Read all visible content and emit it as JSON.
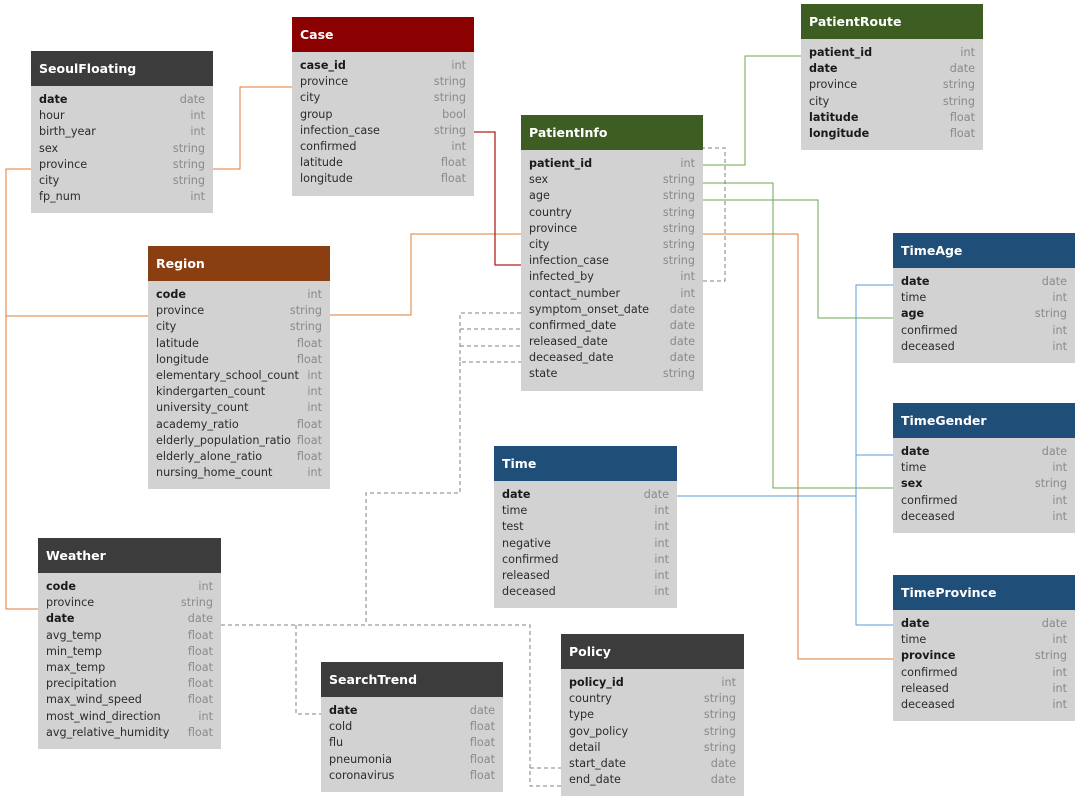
{
  "colors": {
    "gray_header": "#3c3c3c",
    "red_header": "#8b0000",
    "green_header": "#3e5d22",
    "brown_header": "#8a3f12",
    "blue_header": "#1f4e79",
    "body": "#d2d2d2",
    "orange_link": "#e07b39",
    "red_link": "#b22222",
    "green_link": "#6aa84f",
    "blue_link": "#5b9bd5",
    "dashed_link": "#808080"
  },
  "tables": [
    {
      "id": "seoulfloating",
      "title": "SeoulFloating",
      "color": "gray_header",
      "columns": [
        {
          "name": "date",
          "type": "date",
          "key": true
        },
        {
          "name": "hour",
          "type": "int",
          "key": false
        },
        {
          "name": "birth_year",
          "type": "int",
          "key": false
        },
        {
          "name": "sex",
          "type": "string",
          "key": false
        },
        {
          "name": "province",
          "type": "string",
          "key": false
        },
        {
          "name": "city",
          "type": "string",
          "key": false
        },
        {
          "name": "fp_num",
          "type": "int",
          "key": false
        }
      ]
    },
    {
      "id": "case",
      "title": "Case",
      "color": "red_header",
      "columns": [
        {
          "name": "case_id",
          "type": "int",
          "key": true
        },
        {
          "name": "province",
          "type": "string",
          "key": false
        },
        {
          "name": "city",
          "type": "string",
          "key": false
        },
        {
          "name": "group",
          "type": "bool",
          "key": false
        },
        {
          "name": "infection_case",
          "type": "string",
          "key": false
        },
        {
          "name": "confirmed",
          "type": "int",
          "key": false
        },
        {
          "name": "latitude",
          "type": "float",
          "key": false
        },
        {
          "name": "longitude",
          "type": "float",
          "key": false
        }
      ]
    },
    {
      "id": "patientroute",
      "title": "PatientRoute",
      "color": "green_header",
      "columns": [
        {
          "name": "patient_id",
          "type": "int",
          "key": true
        },
        {
          "name": "date",
          "type": "date",
          "key": true
        },
        {
          "name": "province",
          "type": "string",
          "key": false
        },
        {
          "name": "city",
          "type": "string",
          "key": false
        },
        {
          "name": "latitude",
          "type": "float",
          "key": true
        },
        {
          "name": "longitude",
          "type": "float",
          "key": true
        }
      ]
    },
    {
      "id": "patientinfo",
      "title": "PatientInfo",
      "color": "green_header",
      "columns": [
        {
          "name": "patient_id",
          "type": "int",
          "key": true
        },
        {
          "name": "sex",
          "type": "string",
          "key": false
        },
        {
          "name": "age",
          "type": "string",
          "key": false
        },
        {
          "name": "country",
          "type": "string",
          "key": false
        },
        {
          "name": "province",
          "type": "string",
          "key": false
        },
        {
          "name": "city",
          "type": "string",
          "key": false
        },
        {
          "name": "infection_case",
          "type": "string",
          "key": false
        },
        {
          "name": "infected_by",
          "type": "int",
          "key": false
        },
        {
          "name": "contact_number",
          "type": "int",
          "key": false
        },
        {
          "name": "symptom_onset_date",
          "type": "date",
          "key": false
        },
        {
          "name": "confirmed_date",
          "type": "date",
          "key": false
        },
        {
          "name": "released_date",
          "type": "date",
          "key": false
        },
        {
          "name": "deceased_date",
          "type": "date",
          "key": false
        },
        {
          "name": "state",
          "type": "string",
          "key": false
        }
      ]
    },
    {
      "id": "region",
      "title": "Region",
      "color": "brown_header",
      "columns": [
        {
          "name": "code",
          "type": "int",
          "key": true
        },
        {
          "name": "province",
          "type": "string",
          "key": false
        },
        {
          "name": "city",
          "type": "string",
          "key": false
        },
        {
          "name": "latitude",
          "type": "float",
          "key": false
        },
        {
          "name": "longitude",
          "type": "float",
          "key": false
        },
        {
          "name": "elementary_school_count",
          "type": "int",
          "key": false
        },
        {
          "name": "kindergarten_count",
          "type": "int",
          "key": false
        },
        {
          "name": "university_count",
          "type": "int",
          "key": false
        },
        {
          "name": "academy_ratio",
          "type": "float",
          "key": false
        },
        {
          "name": "elderly_population_ratio",
          "type": "float",
          "key": false
        },
        {
          "name": "elderly_alone_ratio",
          "type": "float",
          "key": false
        },
        {
          "name": "nursing_home_count",
          "type": "int",
          "key": false
        }
      ]
    },
    {
      "id": "timeage",
      "title": "TimeAge",
      "color": "blue_header",
      "columns": [
        {
          "name": "date",
          "type": "date",
          "key": true
        },
        {
          "name": "time",
          "type": "int",
          "key": false
        },
        {
          "name": "age",
          "type": "string",
          "key": true
        },
        {
          "name": "confirmed",
          "type": "int",
          "key": false
        },
        {
          "name": "deceased",
          "type": "int",
          "key": false
        }
      ]
    },
    {
      "id": "timegender",
      "title": "TimeGender",
      "color": "blue_header",
      "columns": [
        {
          "name": "date",
          "type": "date",
          "key": true
        },
        {
          "name": "time",
          "type": "int",
          "key": false
        },
        {
          "name": "sex",
          "type": "string",
          "key": true
        },
        {
          "name": "confirmed",
          "type": "int",
          "key": false
        },
        {
          "name": "deceased",
          "type": "int",
          "key": false
        }
      ]
    },
    {
      "id": "time",
      "title": "Time",
      "color": "blue_header",
      "columns": [
        {
          "name": "date",
          "type": "date",
          "key": true
        },
        {
          "name": "time",
          "type": "int",
          "key": false
        },
        {
          "name": "test",
          "type": "int",
          "key": false
        },
        {
          "name": "negative",
          "type": "int",
          "key": false
        },
        {
          "name": "confirmed",
          "type": "int",
          "key": false
        },
        {
          "name": "released",
          "type": "int",
          "key": false
        },
        {
          "name": "deceased",
          "type": "int",
          "key": false
        }
      ]
    },
    {
      "id": "weather",
      "title": "Weather",
      "color": "gray_header",
      "columns": [
        {
          "name": "code",
          "type": "int",
          "key": true
        },
        {
          "name": "province",
          "type": "string",
          "key": false
        },
        {
          "name": "date",
          "type": "date",
          "key": true
        },
        {
          "name": "avg_temp",
          "type": "float",
          "key": false
        },
        {
          "name": "min_temp",
          "type": "float",
          "key": false
        },
        {
          "name": "max_temp",
          "type": "float",
          "key": false
        },
        {
          "name": "precipitation",
          "type": "float",
          "key": false
        },
        {
          "name": "max_wind_speed",
          "type": "float",
          "key": false
        },
        {
          "name": "most_wind_direction",
          "type": "int",
          "key": false
        },
        {
          "name": "avg_relative_humidity",
          "type": "float",
          "key": false
        }
      ]
    },
    {
      "id": "timeprovince",
      "title": "TimeProvince",
      "color": "blue_header",
      "columns": [
        {
          "name": "date",
          "type": "date",
          "key": true
        },
        {
          "name": "time",
          "type": "int",
          "key": false
        },
        {
          "name": "province",
          "type": "string",
          "key": true
        },
        {
          "name": "confirmed",
          "type": "int",
          "key": false
        },
        {
          "name": "released",
          "type": "int",
          "key": false
        },
        {
          "name": "deceased",
          "type": "int",
          "key": false
        }
      ]
    },
    {
      "id": "searchtrend",
      "title": "SearchTrend",
      "color": "gray_header",
      "columns": [
        {
          "name": "date",
          "type": "date",
          "key": true
        },
        {
          "name": "cold",
          "type": "float",
          "key": false
        },
        {
          "name": "flu",
          "type": "float",
          "key": false
        },
        {
          "name": "pneumonia",
          "type": "float",
          "key": false
        },
        {
          "name": "coronavirus",
          "type": "float",
          "key": false
        }
      ]
    },
    {
      "id": "policy",
      "title": "Policy",
      "color": "gray_header",
      "columns": [
        {
          "name": "policy_id",
          "type": "int",
          "key": true
        },
        {
          "name": "country",
          "type": "string",
          "key": false
        },
        {
          "name": "type",
          "type": "string",
          "key": false
        },
        {
          "name": "gov_policy",
          "type": "string",
          "key": false
        },
        {
          "name": "detail",
          "type": "string",
          "key": false
        },
        {
          "name": "start_date",
          "type": "date",
          "key": false
        },
        {
          "name": "end_date",
          "type": "date",
          "key": false
        }
      ]
    }
  ]
}
